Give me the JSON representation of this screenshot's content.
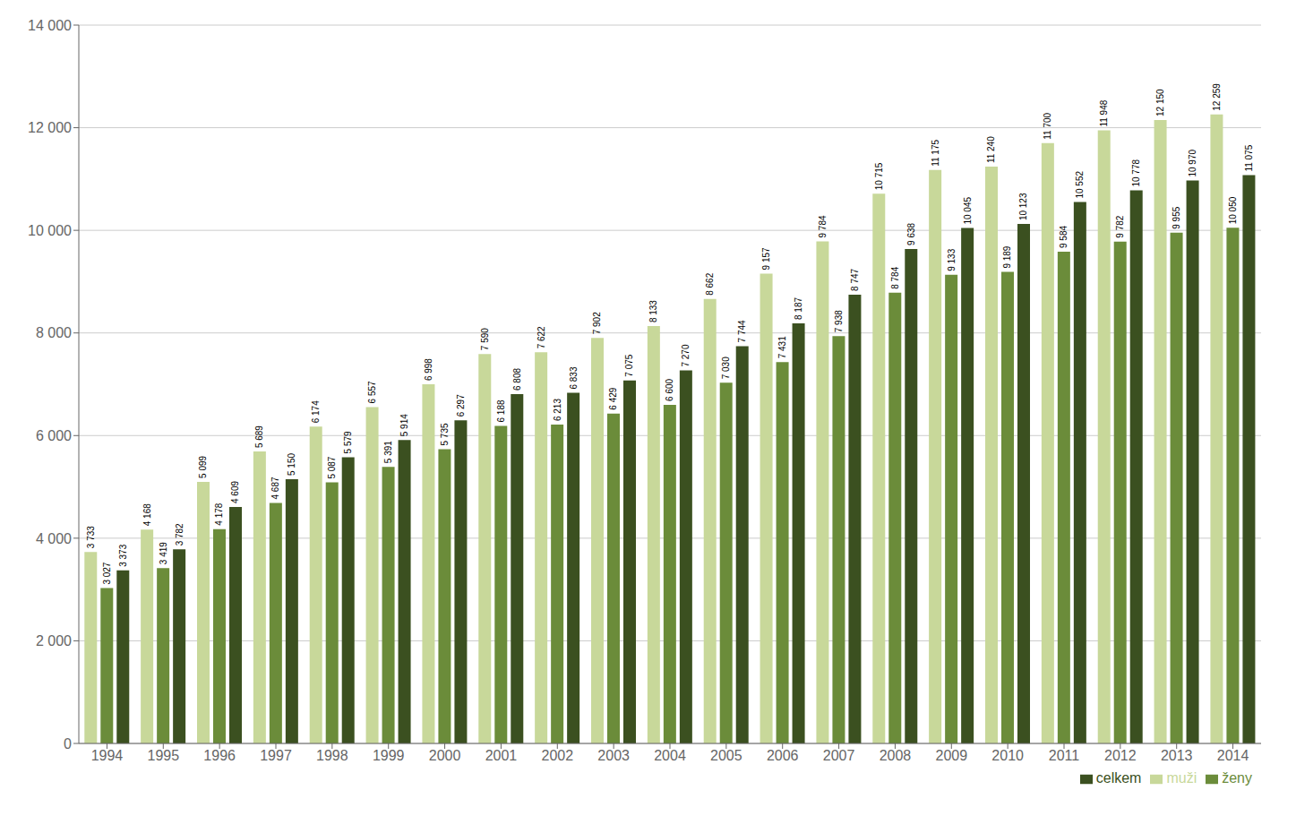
{
  "chart_data": {
    "type": "bar",
    "categories": [
      "1994",
      "1995",
      "1996",
      "1997",
      "1998",
      "1999",
      "2000",
      "2001",
      "2002",
      "2003",
      "2004",
      "2005",
      "2006",
      "2007",
      "2008",
      "2009",
      "2010",
      "2011",
      "2012",
      "2013",
      "2014"
    ],
    "series": [
      {
        "name": "muži",
        "color": "#c8d89a",
        "values": [
          3733,
          4168,
          5099,
          5689,
          6174,
          6557,
          6998,
          7590,
          7622,
          7902,
          8133,
          8662,
          9157,
          9784,
          10715,
          11175,
          11240,
          11700,
          11948,
          12150,
          12259
        ],
        "value_labels": [
          "3 733",
          "4 168",
          "5 099",
          "5 689",
          "6 174",
          "6 557",
          "6 998",
          "7 590",
          "7 622",
          "7 902",
          "8 133",
          "8 662",
          "9 157",
          "9 784",
          "10 715",
          "11 175",
          "11 240",
          "11 700",
          "11 948",
          "12 150",
          "12 259"
        ]
      },
      {
        "name": "ženy",
        "color": "#6b8c3a",
        "values": [
          3027,
          3419,
          4178,
          4687,
          5087,
          5391,
          5735,
          6188,
          6213,
          6429,
          6600,
          7030,
          7431,
          7938,
          8784,
          9133,
          9189,
          9584,
          9782,
          9955,
          10050
        ],
        "value_labels": [
          "3 027",
          "3 419",
          "4 178",
          "4 687",
          "5 087",
          "5 391",
          "5 735",
          "6 188",
          "6 213",
          "6 429",
          "6 600",
          "7 030",
          "7 431",
          "7 938",
          "8 784",
          "9 133",
          "9 189",
          "9 584",
          "9 782",
          "9 955",
          "10 050"
        ]
      },
      {
        "name": "celkem",
        "color": "#3b5020",
        "values": [
          3373,
          3782,
          4609,
          5150,
          5579,
          5914,
          6297,
          6808,
          6833,
          7075,
          7270,
          7744,
          8187,
          8747,
          9638,
          10045,
          10123,
          10552,
          10778,
          10970,
          11075
        ],
        "value_labels": [
          "3 373",
          "3 782",
          "4 609",
          "5 150",
          "5 579",
          "5 914",
          "6 297",
          "6 808",
          "6 833",
          "7 075",
          "7 270",
          "7 744",
          "8 187",
          "8 747",
          "9 638",
          "10 045",
          "10 123",
          "10 552",
          "10 778",
          "10 970",
          "11 075"
        ]
      }
    ],
    "ylim": [
      0,
      14000
    ],
    "yticks": [
      0,
      {
        "value": 2000,
        "label": "2 000"
      },
      {
        "value": 4000,
        "label": "4 000"
      },
      {
        "value": 6000,
        "label": "6 000"
      },
      {
        "value": 8000,
        "label": "8 000"
      },
      {
        "value": 10000,
        "label": "10 000"
      },
      {
        "value": 12000,
        "label": "12 000"
      },
      {
        "value": 14000,
        "label": "14 000"
      }
    ],
    "grid": true,
    "legend": "lower right",
    "data_labels": true
  }
}
